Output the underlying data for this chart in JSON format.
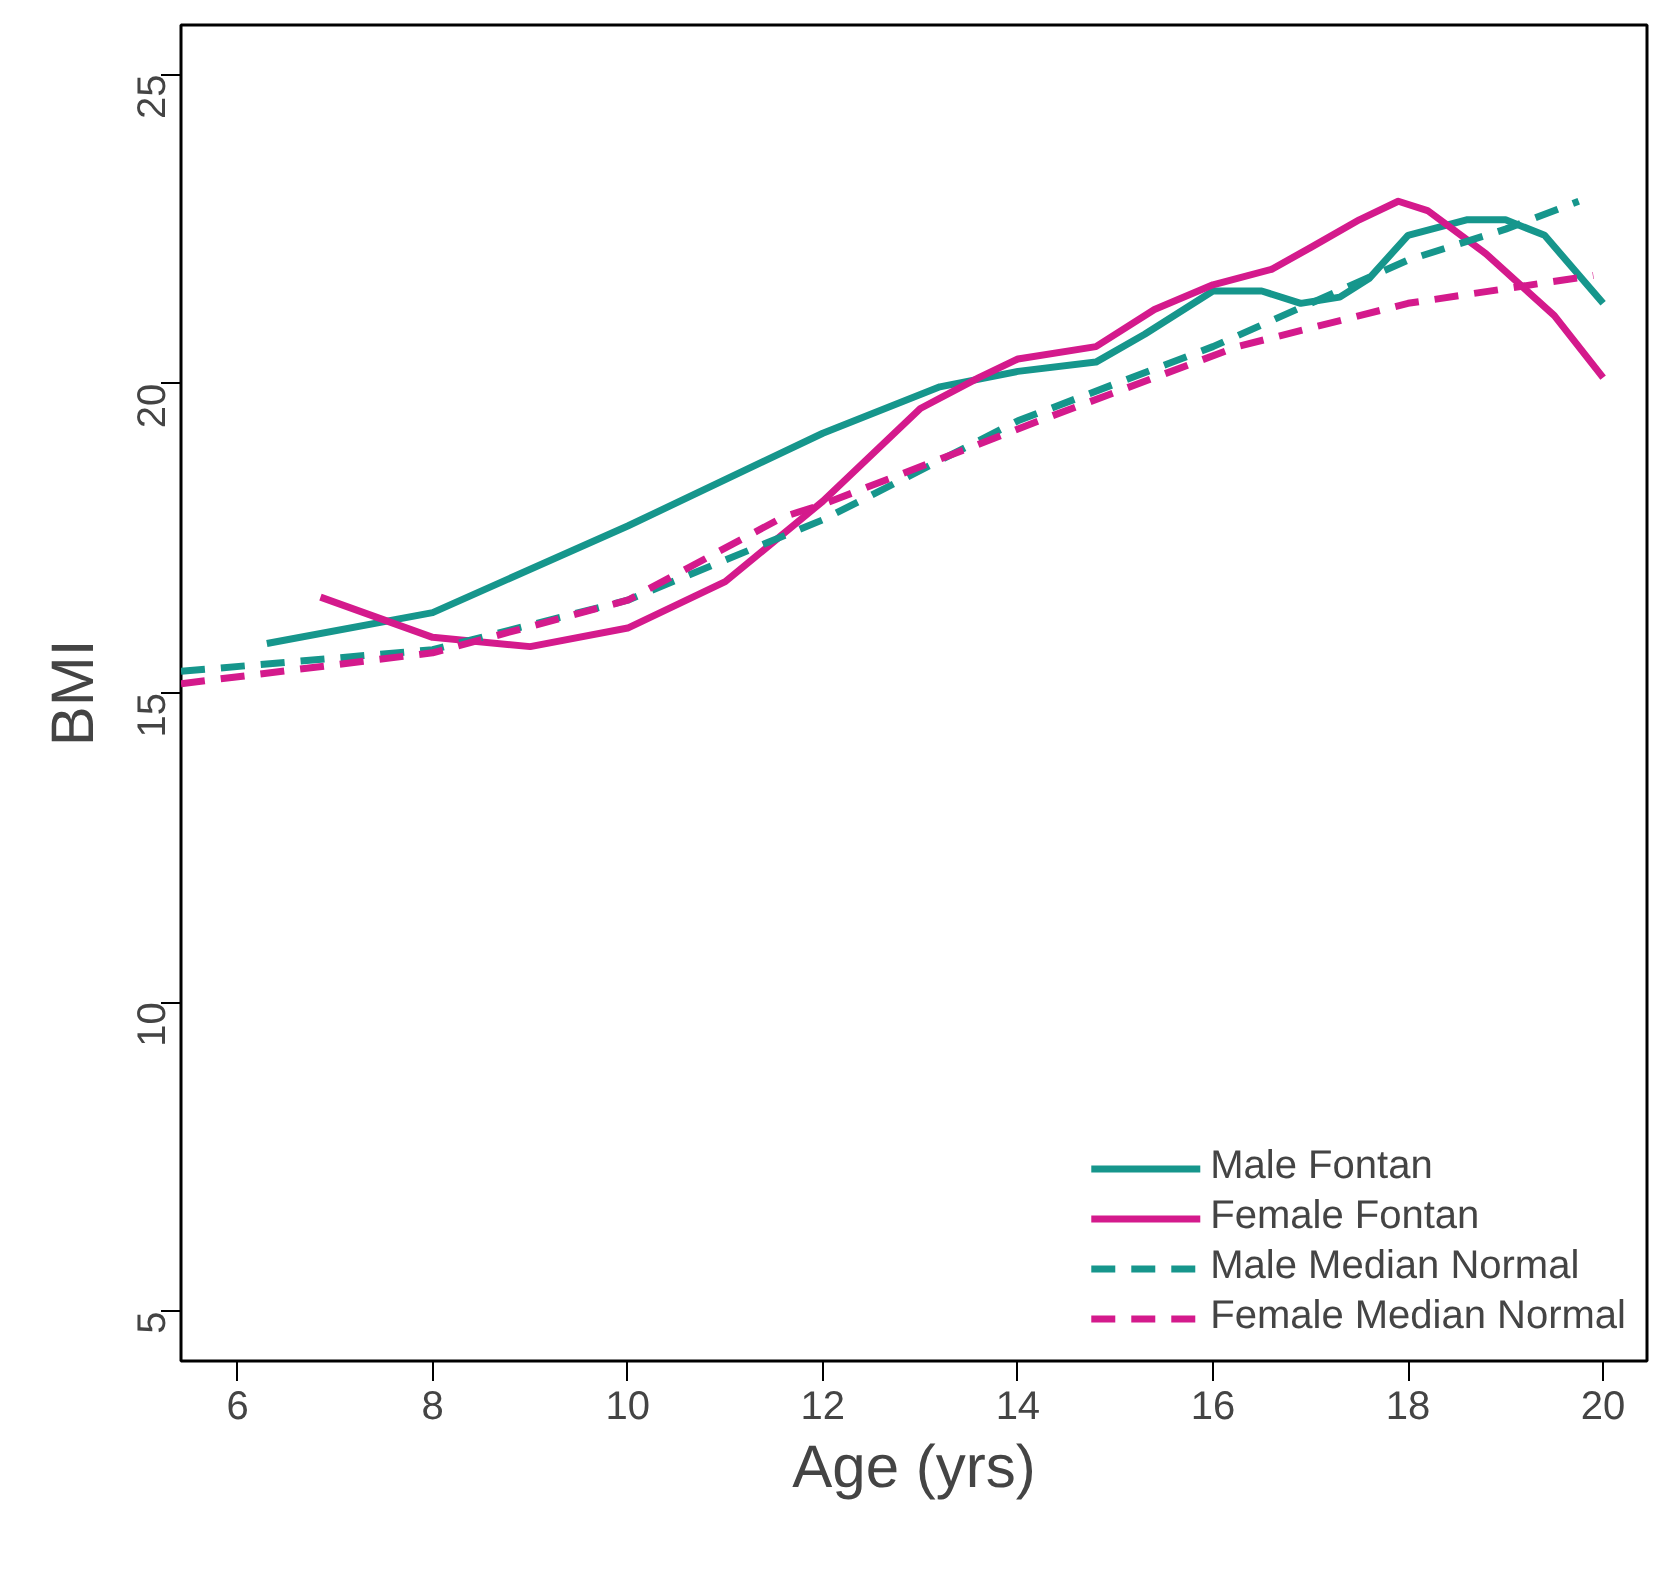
{
  "chart_data": {
    "type": "line",
    "xlabel": "Age (yrs)",
    "ylabel": "BMI",
    "xlim": [
      5.42,
      20.45
    ],
    "ylim": [
      4.2,
      25.8
    ],
    "xticks": [
      6,
      8,
      10,
      12,
      14,
      16,
      18,
      20
    ],
    "yticks": [
      5,
      10,
      15,
      20,
      25
    ],
    "grid": false,
    "legend": "bottom right",
    "series": [
      {
        "name": "Male Fontan",
        "color": "#16968c",
        "line_style": "solid",
        "x": [
          6.3,
          8,
          10,
          12,
          13.2,
          14,
          14.8,
          15.3,
          16,
          16.5,
          16.9,
          17.3,
          17.6,
          18,
          18.6,
          19,
          19.4,
          20
        ],
        "values": [
          15.8,
          16.3,
          17.7,
          19.2,
          19.95,
          20.2,
          20.35,
          20.8,
          21.5,
          21.5,
          21.3,
          21.4,
          21.7,
          22.4,
          22.65,
          22.65,
          22.4,
          21.3
        ]
      },
      {
        "name": "Female Fontan",
        "color": "#d41a8c",
        "line_style": "solid",
        "x": [
          6.85,
          8,
          9,
          10,
          11,
          12,
          13,
          13.6,
          14,
          14.8,
          15.4,
          16,
          16.6,
          17,
          17.5,
          17.9,
          18.2,
          18.8,
          19.5,
          20
        ],
        "values": [
          16.55,
          15.9,
          15.75,
          16.05,
          16.8,
          18.1,
          19.6,
          20.1,
          20.4,
          20.6,
          21.2,
          21.6,
          21.85,
          22.2,
          22.65,
          22.95,
          22.8,
          22.1,
          21.1,
          20.1
        ]
      },
      {
        "name": "Male Median Normal",
        "color": "#16968c",
        "line_style": "dashed",
        "x": [
          5.42,
          8,
          10,
          12,
          14,
          16,
          17,
          18,
          19,
          19.75
        ],
        "values": [
          15.35,
          15.7,
          16.5,
          17.8,
          19.4,
          20.6,
          21.3,
          22.0,
          22.5,
          22.95
        ]
      },
      {
        "name": "Female Median Normal",
        "color": "#d41a8c",
        "line_style": "dashed",
        "x": [
          5.42,
          8,
          10,
          11.6,
          12,
          14.3,
          16.25,
          18,
          19.9
        ],
        "values": [
          15.15,
          15.65,
          16.5,
          17.85,
          18.05,
          19.45,
          20.6,
          21.3,
          21.75
        ]
      }
    ]
  }
}
